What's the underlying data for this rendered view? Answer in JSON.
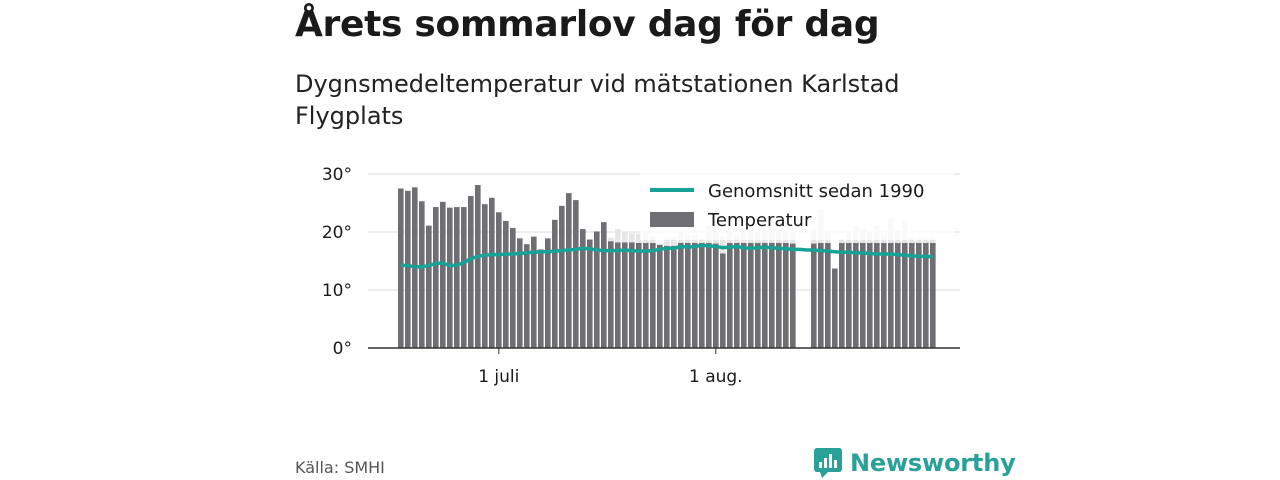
{
  "header": {
    "title": "Årets sommarlov dag för dag",
    "subtitle": "Dygnsmedeltemperatur vid mätstationen Karlstad Flygplats"
  },
  "footer": {
    "source": "Källa: SMHI",
    "brand": "Newsworthy"
  },
  "colors": {
    "bar": "#6e6e73",
    "forecast_bar": "#e6e6e6",
    "line": "#17a297",
    "brand": "#2aa198"
  },
  "chart_data": {
    "type": "bar",
    "ylim": [
      0,
      30
    ],
    "yticks": [
      {
        "value": 0,
        "label": "0°"
      },
      {
        "value": 10,
        "label": "10°"
      },
      {
        "value": 20,
        "label": "20°"
      },
      {
        "value": 30,
        "label": "30°"
      }
    ],
    "xticks": [
      {
        "date": "2023-07-01",
        "label": "1 juli"
      },
      {
        "date": "2023-08-01",
        "label": "1 aug."
      }
    ],
    "x_start": "2023-06-17",
    "legend": {
      "position": "top-right",
      "entries": [
        {
          "label": "Genomsnitt sedan 1990",
          "kind": "line"
        },
        {
          "label": "Temperatur",
          "kind": "bar"
        }
      ]
    },
    "series": [
      {
        "name": "Temperatur",
        "kind": "bar",
        "values": [
          27.5,
          27.1,
          27.7,
          25.3,
          21.1,
          24.3,
          25.2,
          24.2,
          24.3,
          24.3,
          26.2,
          28.1,
          24.8,
          25.9,
          23.4,
          21.9,
          20.7,
          18.9,
          17.9,
          19.2,
          17.0,
          18.9,
          22.1,
          24.5,
          26.7,
          25.5,
          20.5,
          18.7,
          20.1,
          21.7,
          18.4,
          18.2,
          18.2,
          18.2,
          18.1,
          18.1,
          18.1,
          17.8,
          17.6,
          17.6,
          18.1,
          18.1,
          18.1,
          18.1,
          18.1,
          18.0,
          16.3,
          18.1,
          18.1,
          18.1,
          18.1,
          18.1,
          18.1,
          18.1,
          18.1,
          18.1,
          18.0,
          null,
          null,
          18.0,
          18.1,
          18.1,
          13.7,
          18.1,
          18.1,
          18.1,
          18.1,
          18.1,
          18.1,
          18.1,
          18.1,
          18.1,
          18.1,
          18.1,
          18.1,
          18.1,
          18.1
        ]
      },
      {
        "name": "forecast",
        "kind": "bar",
        "values": [
          null,
          null,
          null,
          null,
          null,
          null,
          null,
          null,
          null,
          null,
          null,
          null,
          null,
          null,
          null,
          null,
          null,
          null,
          null,
          null,
          null,
          null,
          null,
          null,
          null,
          null,
          null,
          null,
          null,
          null,
          19.0,
          20.5,
          20.0,
          19.8,
          19.7,
          20.2,
          19.3,
          17.8,
          18.9,
          19.1,
          20.1,
          19.6,
          19.5,
          18.9,
          21.0,
          20.4,
          19.2,
          20.0,
          19.5,
          20.6,
          20.3,
          20.1,
          19.9,
          20.6,
          20.4,
          20.2,
          20.1,
          null,
          null,
          20.4,
          23.9,
          20.2,
          13.4,
          18.8,
          19.8,
          21.0,
          20.6,
          20.1,
          21.1,
          19.7,
          22.3,
          20.3,
          21.9,
          19.1,
          19.0,
          18.9,
          19.0
        ]
      },
      {
        "name": "Genomsnitt sedan 1990",
        "kind": "line",
        "values": [
          14.3,
          14.2,
          14.0,
          14.0,
          14.2,
          14.6,
          14.6,
          14.2,
          14.3,
          14.7,
          15.4,
          15.8,
          16.0,
          16.1,
          16.1,
          16.2,
          16.2,
          16.3,
          16.4,
          16.5,
          16.6,
          16.6,
          16.7,
          16.8,
          16.9,
          17.0,
          17.2,
          17.1,
          16.9,
          16.8,
          16.8,
          16.8,
          16.9,
          16.8,
          16.7,
          16.7,
          16.8,
          17.0,
          17.2,
          17.2,
          17.5,
          17.4,
          17.5,
          17.7,
          17.6,
          17.5,
          17.3,
          17.4,
          17.5,
          17.3,
          17.2,
          17.3,
          17.4,
          17.3,
          17.2,
          17.1,
          17.0,
          17.0,
          16.9,
          16.9,
          16.8,
          16.7,
          16.6,
          16.5,
          16.5,
          16.4,
          16.4,
          16.3,
          16.2,
          16.2,
          16.2,
          16.1,
          16.0,
          15.9,
          15.8,
          15.8,
          15.7
        ]
      }
    ]
  }
}
